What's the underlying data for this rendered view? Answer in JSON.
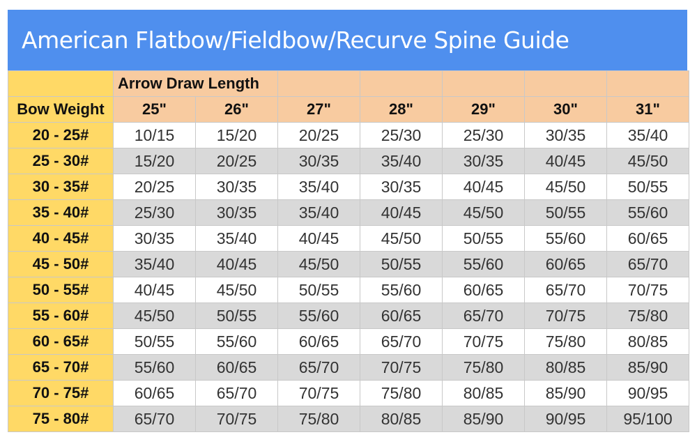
{
  "title": "American Flatbow/Fieldbow/Recurve  Spine Guide",
  "colors": {
    "title_bg": "#4f8fee",
    "weight_col": "#ffd966",
    "header": "#f8cba0",
    "alt_row": "#d9d9d9"
  },
  "header": {
    "group_label": "Arrow Draw Length",
    "row_label": "Bow Weight",
    "columns": [
      "25\"",
      "26\"",
      "27\"",
      "28\"",
      "29\"",
      "30\"",
      "31\""
    ]
  },
  "rows": [
    {
      "weight": "20 - 25#",
      "values": [
        "10/15",
        "15/20",
        "20/25",
        "25/30",
        "25/30",
        "30/35",
        "35/40"
      ]
    },
    {
      "weight": "25 - 30#",
      "values": [
        "15/20",
        "20/25",
        "30/35",
        "35/40",
        "30/35",
        "40/45",
        "45/50"
      ]
    },
    {
      "weight": "30 - 35#",
      "values": [
        "20/25",
        "30/35",
        "35/40",
        "30/35",
        "40/45",
        "45/50",
        "50/55"
      ]
    },
    {
      "weight": "35 - 40#",
      "values": [
        "25/30",
        "30/35",
        "35/40",
        "40/45",
        "45/50",
        "50/55",
        "55/60"
      ]
    },
    {
      "weight": "40 - 45#",
      "values": [
        "30/35",
        "35/40",
        "40/45",
        "45/50",
        "50/55",
        "55/60",
        "60/65"
      ]
    },
    {
      "weight": "45 - 50#",
      "values": [
        "35/40",
        "40/45",
        "45/50",
        "50/55",
        "55/60",
        "60/65",
        "65/70"
      ]
    },
    {
      "weight": "50 - 55#",
      "values": [
        "40/45",
        "45/50",
        "50/55",
        "55/60",
        "60/65",
        "65/70",
        "70/75"
      ]
    },
    {
      "weight": "55 - 60#",
      "values": [
        "45/50",
        "50/55",
        "55/60",
        "60/65",
        "65/70",
        "70/75",
        "75/80"
      ]
    },
    {
      "weight": "60 - 65#",
      "values": [
        "50/55",
        "55/60",
        "60/65",
        "65/70",
        "70/75",
        "75/80",
        "80/85"
      ]
    },
    {
      "weight": "65 - 70#",
      "values": [
        "55/60",
        "60/65",
        "65/70",
        "70/75",
        "75/80",
        "80/85",
        "85/90"
      ]
    },
    {
      "weight": "70 - 75#",
      "values": [
        "60/65",
        "65/70",
        "70/75",
        "75/80",
        "80/85",
        "85/90",
        "90/95"
      ]
    },
    {
      "weight": "75 - 80#",
      "values": [
        "65/70",
        "70/75",
        "75/80",
        "80/85",
        "85/90",
        "90/95",
        "95/100"
      ]
    }
  ]
}
